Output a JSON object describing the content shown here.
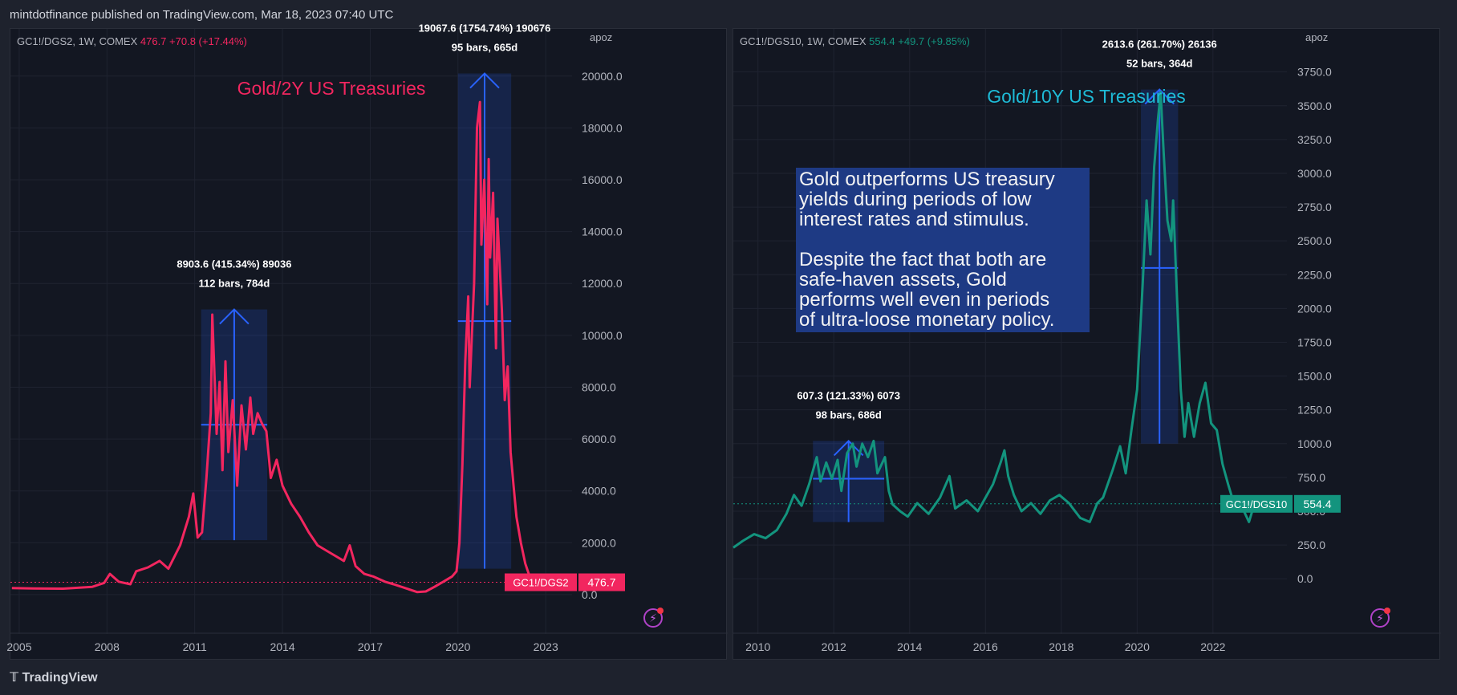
{
  "header": {
    "publisher_line": "mintdotfinance published on TradingView.com, Mar 18, 2023 07:40 UTC"
  },
  "footer": {
    "brand": "TradingView"
  },
  "colors": {
    "left_series": "#f2265f",
    "right_series": "#13947e",
    "measure": "#2962ff",
    "left_title": "#f2265f",
    "right_title": "#1ebbd7",
    "background": "#131722"
  },
  "chart_data": [
    {
      "type": "line",
      "legend": {
        "symbol": "GC1!/DGS2, 1W, COMEX",
        "last": "476.7",
        "change": "+70.8 (+17.44%)"
      },
      "title": "Gold/2Y US Treasuries",
      "scale_label": "apoz",
      "y_ticks": [
        "20000.0",
        "18000.0",
        "16000.0",
        "14000.0",
        "12000.0",
        "10000.0",
        "8000.0",
        "6000.0",
        "4000.0",
        "2000.0",
        "0.0"
      ],
      "x_ticks": [
        "2005",
        "2008",
        "2011",
        "2014",
        "2017",
        "2020",
        "2023"
      ],
      "ylim": [
        -900,
        21200
      ],
      "xlim": [
        2004.7,
        2023.9
      ],
      "price_tag": {
        "label": "GC1!/DGS2",
        "value": "476.7",
        "y": 476.7
      },
      "series": [
        {
          "values": [
            [
              2004.75,
              250
            ],
            [
              2005.5,
              240
            ],
            [
              2006.5,
              230
            ],
            [
              2007.5,
              300
            ],
            [
              2007.9,
              450
            ],
            [
              2008.1,
              800
            ],
            [
              2008.4,
              500
            ],
            [
              2008.8,
              400
            ],
            [
              2009.0,
              900
            ],
            [
              2009.4,
              1050
            ],
            [
              2009.8,
              1300
            ],
            [
              2010.1,
              1000
            ],
            [
              2010.5,
              1900
            ],
            [
              2010.8,
              3000
            ],
            [
              2010.95,
              3900
            ],
            [
              2011.1,
              2200
            ],
            [
              2011.25,
              2400
            ],
            [
              2011.4,
              4500
            ],
            [
              2011.55,
              7000
            ],
            [
              2011.6,
              10800
            ],
            [
              2011.75,
              6200
            ],
            [
              2011.85,
              8200
            ],
            [
              2011.95,
              4800
            ],
            [
              2012.05,
              9000
            ],
            [
              2012.15,
              5500
            ],
            [
              2012.3,
              7500
            ],
            [
              2012.45,
              4200
            ],
            [
              2012.6,
              7300
            ],
            [
              2012.75,
              5600
            ],
            [
              2012.9,
              7600
            ],
            [
              2013.0,
              6200
            ],
            [
              2013.15,
              7000
            ],
            [
              2013.3,
              6600
            ],
            [
              2013.45,
              6300
            ],
            [
              2013.6,
              4500
            ],
            [
              2013.8,
              5200
            ],
            [
              2014.0,
              4200
            ],
            [
              2014.3,
              3500
            ],
            [
              2014.6,
              3000
            ],
            [
              2014.9,
              2400
            ],
            [
              2015.2,
              1900
            ],
            [
              2015.5,
              1700
            ],
            [
              2015.8,
              1500
            ],
            [
              2016.1,
              1300
            ],
            [
              2016.3,
              1900
            ],
            [
              2016.5,
              1100
            ],
            [
              2016.8,
              800
            ],
            [
              2017.1,
              700
            ],
            [
              2017.5,
              500
            ],
            [
              2017.8,
              400
            ],
            [
              2018.2,
              250
            ],
            [
              2018.6,
              100
            ],
            [
              2018.9,
              120
            ],
            [
              2019.2,
              300
            ],
            [
              2019.5,
              500
            ],
            [
              2019.8,
              700
            ],
            [
              2019.95,
              900
            ],
            [
              2020.05,
              2000
            ],
            [
              2020.15,
              5000
            ],
            [
              2020.25,
              9000
            ],
            [
              2020.35,
              11500
            ],
            [
              2020.4,
              8000
            ],
            [
              2020.55,
              12000
            ],
            [
              2020.65,
              18000
            ],
            [
              2020.75,
              19000
            ],
            [
              2020.8,
              13500
            ],
            [
              2020.9,
              16000
            ],
            [
              2021.0,
              11200
            ],
            [
              2021.05,
              16800
            ],
            [
              2021.1,
              13000
            ],
            [
              2021.2,
              15500
            ],
            [
              2021.3,
              9500
            ],
            [
              2021.35,
              14500
            ],
            [
              2021.5,
              11000
            ],
            [
              2021.6,
              7500
            ],
            [
              2021.7,
              8800
            ],
            [
              2021.8,
              5500
            ],
            [
              2021.9,
              4200
            ],
            [
              2022.0,
              3000
            ],
            [
              2022.15,
              2000
            ],
            [
              2022.3,
              1200
            ],
            [
              2022.45,
              700
            ],
            [
              2022.6,
              476.7
            ]
          ]
        }
      ],
      "measure": {
        "label1": "8903.6 (415.34%) 89036",
        "label2": "112 bars, 784d",
        "x0": 2011.22,
        "x1": 2013.48,
        "y0": 2100,
        "y1": 11000,
        "mid_y": 6550
      },
      "measure2": {
        "label1": "19067.6 (1754.74%) 190676",
        "label2": "95 bars, 665d",
        "x0": 2020.0,
        "x1": 2021.82,
        "y0": 1000,
        "y1": 20100,
        "mid_y": 10550
      }
    },
    {
      "type": "line",
      "legend": {
        "symbol": "GC1!/DGS10, 1W, COMEX",
        "last": "554.4",
        "change": "+49.7 (+9.85%)"
      },
      "title": "Gold/10Y US Treasuries",
      "scale_label": "apoz",
      "y_ticks": [
        "3750.0",
        "3500.0",
        "3250.0",
        "3000.0",
        "2750.0",
        "2500.0",
        "2250.0",
        "2000.0",
        "1750.0",
        "1500.0",
        "1250.0",
        "1000.0",
        "750.0",
        "500.0",
        "250.0",
        "0.0"
      ],
      "x_ticks": [
        "2010",
        "2012",
        "2014",
        "2016",
        "2018",
        "2020",
        "2022"
      ],
      "ylim": [
        -290,
        3950
      ],
      "xlim": [
        2009.35,
        2023.95
      ],
      "price_tag": {
        "label": "GC1!/DGS10",
        "value": "554.4",
        "y": 554.4
      },
      "series": [
        {
          "values": [
            [
              2009.35,
              230
            ],
            [
              2009.6,
              280
            ],
            [
              2009.9,
              330
            ],
            [
              2010.2,
              300
            ],
            [
              2010.5,
              360
            ],
            [
              2010.75,
              480
            ],
            [
              2010.95,
              620
            ],
            [
              2011.15,
              540
            ],
            [
              2011.35,
              700
            ],
            [
              2011.55,
              900
            ],
            [
              2011.65,
              720
            ],
            [
              2011.8,
              860
            ],
            [
              2011.95,
              740
            ],
            [
              2012.1,
              880
            ],
            [
              2012.2,
              650
            ],
            [
              2012.35,
              930
            ],
            [
              2012.5,
              1000
            ],
            [
              2012.6,
              830
            ],
            [
              2012.75,
              1000
            ],
            [
              2012.9,
              900
            ],
            [
              2013.05,
              1020
            ],
            [
              2013.15,
              780
            ],
            [
              2013.35,
              900
            ],
            [
              2013.45,
              650
            ],
            [
              2013.55,
              550
            ],
            [
              2013.75,
              500
            ],
            [
              2013.95,
              460
            ],
            [
              2014.2,
              560
            ],
            [
              2014.5,
              480
            ],
            [
              2014.8,
              600
            ],
            [
              2015.05,
              760
            ],
            [
              2015.2,
              520
            ],
            [
              2015.5,
              580
            ],
            [
              2015.8,
              500
            ],
            [
              2016.0,
              600
            ],
            [
              2016.2,
              700
            ],
            [
              2016.4,
              860
            ],
            [
              2016.5,
              950
            ],
            [
              2016.6,
              760
            ],
            [
              2016.75,
              620
            ],
            [
              2016.95,
              500
            ],
            [
              2017.2,
              560
            ],
            [
              2017.45,
              480
            ],
            [
              2017.7,
              580
            ],
            [
              2017.95,
              620
            ],
            [
              2018.2,
              560
            ],
            [
              2018.5,
              450
            ],
            [
              2018.75,
              420
            ],
            [
              2018.95,
              560
            ],
            [
              2019.1,
              600
            ],
            [
              2019.35,
              800
            ],
            [
              2019.55,
              980
            ],
            [
              2019.7,
              780
            ],
            [
              2019.85,
              1100
            ],
            [
              2020.0,
              1400
            ],
            [
              2020.15,
              2200
            ],
            [
              2020.25,
              2800
            ],
            [
              2020.35,
              2400
            ],
            [
              2020.45,
              3050
            ],
            [
              2020.55,
              3400
            ],
            [
              2020.62,
              3600
            ],
            [
              2020.7,
              3150
            ],
            [
              2020.8,
              2650
            ],
            [
              2020.9,
              2500
            ],
            [
              2020.95,
              2800
            ],
            [
              2021.05,
              2100
            ],
            [
              2021.15,
              1400
            ],
            [
              2021.25,
              1050
            ],
            [
              2021.35,
              1300
            ],
            [
              2021.5,
              1050
            ],
            [
              2021.65,
              1300
            ],
            [
              2021.8,
              1450
            ],
            [
              2021.95,
              1150
            ],
            [
              2022.1,
              1100
            ],
            [
              2022.25,
              850
            ],
            [
              2022.4,
              700
            ],
            [
              2022.55,
              560
            ],
            [
              2022.75,
              540
            ],
            [
              2022.95,
              420
            ],
            [
              2023.1,
              560
            ],
            [
              2023.25,
              500
            ],
            [
              2023.45,
              554.4
            ]
          ]
        }
      ],
      "measure": {
        "label1": "607.3 (121.33%) 6073",
        "label2": "98 bars, 686d",
        "x0": 2011.45,
        "x1": 2013.33,
        "y0": 420,
        "y1": 1020,
        "mid_y": 740
      },
      "measure2": {
        "label1": "2613.6 (261.70%) 26136",
        "label2": "52 bars, 364d",
        "x0": 2020.1,
        "x1": 2021.08,
        "y0": 1000,
        "y1": 3620,
        "mid_y": 2300
      }
    }
  ],
  "annotation": "Gold outperforms US treasury\nyields during periods of low\ninterest rates and stimulus.\n\nDespite the fact that both are\nsafe-haven assets, Gold\nperforms well even in periods\nof ultra-loose monetary policy."
}
